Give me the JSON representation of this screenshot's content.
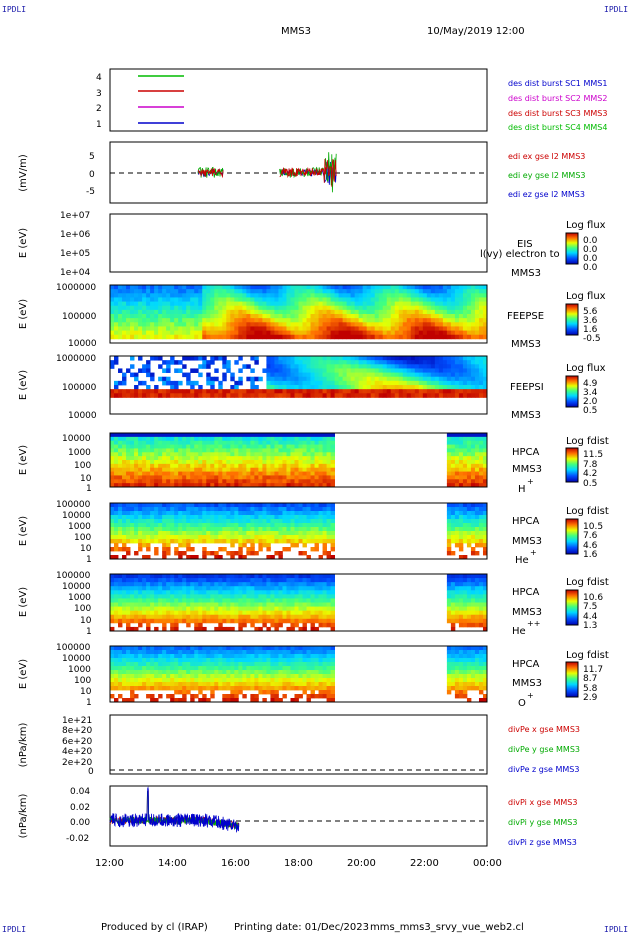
{
  "header": {
    "corner_left": "IPDLI",
    "corner_right": "IPDLI",
    "title": "MMS3",
    "datetime": "10/May/2019 12:00"
  },
  "footer": {
    "produced": "Produced by cl (IRAP)",
    "printing": "Printing date: 01/Dec/2023",
    "script": "mms_mms3_srvy_vue_web2.cl"
  },
  "x_axis": {
    "ticks": [
      "12:00",
      "14:00",
      "16:00",
      "18:00",
      "20:00",
      "22:00",
      "00:00"
    ]
  },
  "panels": {
    "burst": {
      "yticks": [
        "4",
        "3",
        "2",
        "1"
      ],
      "legend": [
        {
          "text": "des dist burst SC1 MMS1",
          "color": "#0000cc"
        },
        {
          "text": "des dist burst SC2 MMS2",
          "color": "#cc00cc"
        },
        {
          "text": "des dist burst SC3 MMS3",
          "color": "#cc0000"
        },
        {
          "text": "des dist burst SC4 MMS4",
          "color": "#00bb00"
        }
      ]
    },
    "edi": {
      "ylabel": "(mV/m)",
      "yticks": [
        "5",
        "0",
        "-5"
      ],
      "legend": [
        {
          "text": "edi ex gse l2 MMS3",
          "color": "#cc0000"
        },
        {
          "text": "edi ey gse l2 MMS3",
          "color": "#00aa00"
        },
        {
          "text": "edi ez gse l2 MMS3",
          "color": "#0000cc"
        }
      ]
    },
    "eis": {
      "ylabel": "E (eV)",
      "yticks": [
        "1e+07",
        "1e+06",
        "1e+05",
        "1e+04"
      ],
      "name": "EIS",
      "overlay": "l(vy) electron to",
      "sc": "MMS3",
      "cb_title": "Log flux",
      "cb_ticks": [
        "0.0",
        "0.0",
        "0.0",
        "0.0"
      ]
    },
    "feepse": {
      "ylabel": "E (eV)",
      "yticks": [
        "1000000",
        "100000",
        "10000"
      ],
      "name": "FEEPSE",
      "sc": "MMS3",
      "cb_title": "Log flux",
      "cb_ticks": [
        "5.6",
        "3.6",
        "1.6",
        "-0.5"
      ]
    },
    "feepsi": {
      "ylabel": "E (eV)",
      "yticks": [
        "1000000",
        "100000",
        "10000"
      ],
      "name": "FEEPSI",
      "sc": "MMS3",
      "cb_title": "Log flux",
      "cb_ticks": [
        "4.9",
        "3.4",
        "2.0",
        "0.5"
      ]
    },
    "hpca_h": {
      "ylabel": "E (eV)",
      "yticks": [
        "10000",
        "1000",
        "100",
        "10",
        "1"
      ],
      "name": "HPCA",
      "sc": "MMS3",
      "species": "H",
      "charge": "+",
      "cb_title": "Log fdist",
      "cb_ticks": [
        "11.5",
        "7.8",
        "4.2",
        "0.5"
      ]
    },
    "hpca_he": {
      "ylabel": "E (eV)",
      "yticks": [
        "100000",
        "10000",
        "1000",
        "100",
        "10",
        "1"
      ],
      "name": "HPCA",
      "sc": "MMS3",
      "species": "He",
      "charge": "+",
      "cb_title": "Log fdist",
      "cb_ticks": [
        "10.5",
        "7.6",
        "4.6",
        "1.6"
      ]
    },
    "hpca_hepp": {
      "ylabel": "E (eV)",
      "yticks": [
        "100000",
        "10000",
        "1000",
        "100",
        "10",
        "1"
      ],
      "name": "HPCA",
      "sc": "MMS3",
      "species": "He",
      "charge": "++",
      "cb_title": "Log fdist",
      "cb_ticks": [
        "10.6",
        "7.5",
        "4.4",
        "1.3"
      ]
    },
    "hpca_o": {
      "ylabel": "E (eV)",
      "yticks": [
        "100000",
        "10000",
        "1000",
        "100",
        "10",
        "1"
      ],
      "name": "HPCA",
      "sc": "MMS3",
      "species": "O",
      "charge": "+",
      "cb_title": "Log fdist",
      "cb_ticks": [
        "11.7",
        "8.7",
        "5.8",
        "2.9"
      ]
    },
    "divpe": {
      "ylabel": "(nPa/km)",
      "yticks": [
        "1e+21",
        "8e+20",
        "6e+20",
        "4e+20",
        "2e+20",
        "0"
      ],
      "legend": [
        {
          "text": "divPe x gse MMS3",
          "color": "#cc0000"
        },
        {
          "text": "divPe y gse MMS3",
          "color": "#00aa00"
        },
        {
          "text": "divPe z gse MMS3",
          "color": "#0000cc"
        }
      ]
    },
    "divpi": {
      "ylabel": "(nPa/km)",
      "yticks": [
        "0.04",
        "0.02",
        "0.00",
        "-0.02"
      ],
      "legend": [
        {
          "text": "divPi x gse MMS3",
          "color": "#cc0000"
        },
        {
          "text": "divPi y gse MMS3",
          "color": "#00aa00"
        },
        {
          "text": "divPi z gse MMS3",
          "color": "#0000cc"
        }
      ]
    }
  },
  "chart_data": {
    "type": "line",
    "title": "MMS3",
    "x_range": [
      "10/May/2019 12:00",
      "11/May/2019 00:00"
    ],
    "hpca_data_gap_hours": [
      19.2,
      22.7
    ],
    "edi_ylim": [
      -7,
      7
    ],
    "divpi_ylim": [
      -0.03,
      0.04
    ]
  }
}
